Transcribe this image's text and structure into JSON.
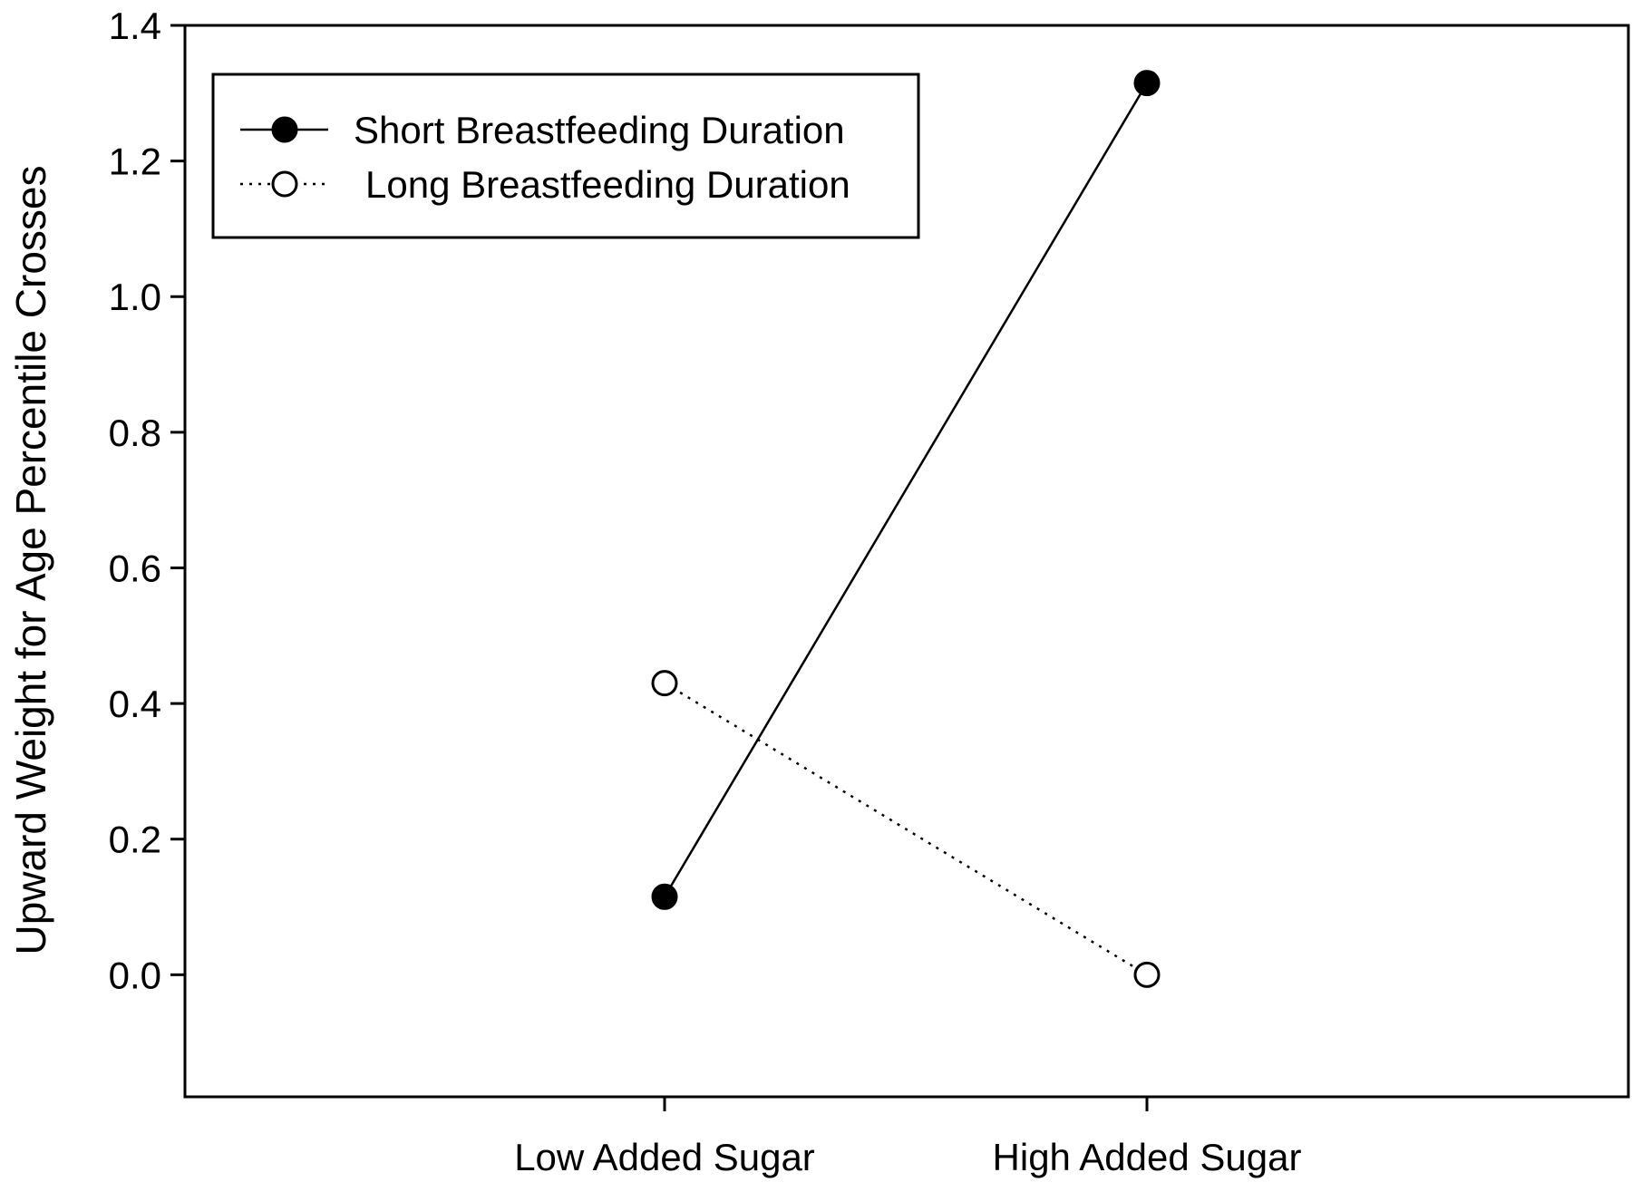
{
  "chart_data": {
    "type": "line",
    "title": "",
    "xlabel": "",
    "ylabel": "Upward Weight for Age Percentile Crosses",
    "categories": [
      "Low Added Sugar",
      "High Added Sugar"
    ],
    "ylim": [
      -0.18,
      1.4
    ],
    "yticks": [
      0.0,
      0.2,
      0.4,
      0.6,
      0.8,
      1.0,
      1.2,
      1.4
    ],
    "ytick_labels": [
      "0.0",
      "0.2",
      "0.4",
      "0.6",
      "0.8",
      "1.0",
      "1.2",
      "1.4"
    ],
    "grid": false,
    "legend_position": "top-left",
    "series": [
      {
        "name": "Short Breastfeeding Duration",
        "values": [
          0.115,
          1.315
        ],
        "marker": "filled-circle",
        "line": "solid",
        "color": "#000000"
      },
      {
        "name": "Long Breastfeeding Duration",
        "values": [
          0.43,
          0.0
        ],
        "marker": "open-circle",
        "line": "dotted",
        "color": "#000000"
      }
    ]
  }
}
